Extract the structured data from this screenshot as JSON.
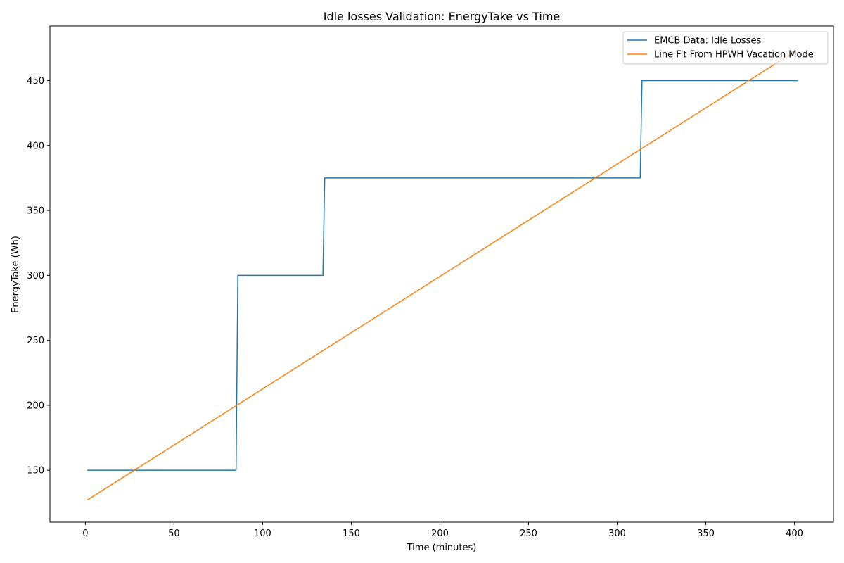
{
  "chart_data": {
    "type": "line",
    "title": "Idle losses Validation: EnergyTake vs Time",
    "xlabel": "Time (minutes)",
    "ylabel": "EnergyTake (Wh)",
    "xlim": [
      -20,
      422
    ],
    "ylim": [
      110,
      492
    ],
    "xticks": [
      0,
      50,
      100,
      150,
      200,
      250,
      300,
      350,
      400
    ],
    "yticks": [
      150,
      200,
      250,
      300,
      350,
      400,
      450
    ],
    "grid": false,
    "legend_position": "upper right",
    "series": [
      {
        "name": "EMCB Data: Idle Losses",
        "color": "#1f77b4",
        "x": [
          1,
          85,
          86,
          134,
          135,
          313,
          314,
          402
        ],
        "y": [
          150,
          150,
          300,
          300,
          375,
          375,
          450,
          450
        ]
      },
      {
        "name": "Line Fit From HPWH Vacation Mode",
        "color": "#ff7f0e",
        "x": [
          1,
          402
        ],
        "y": [
          127,
          474
        ]
      }
    ]
  }
}
